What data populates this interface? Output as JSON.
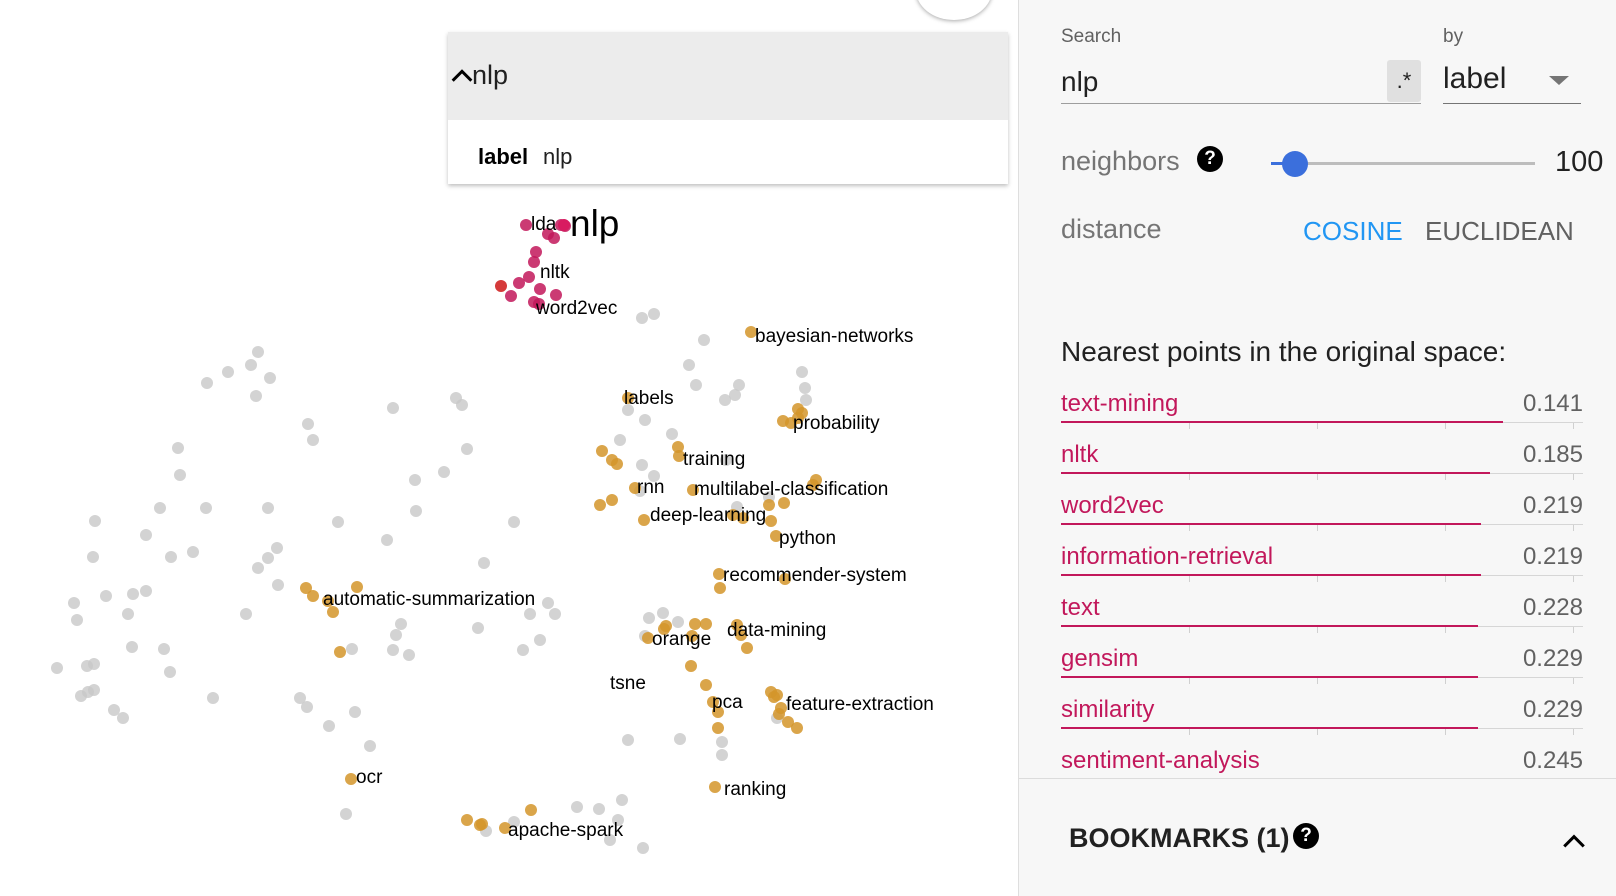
{
  "search_card": {
    "query": "nlp",
    "result_key": "label",
    "result_value": "nlp"
  },
  "panel": {
    "search_label": "Search",
    "search_value": "nlp",
    "regex_label": ".*",
    "by_label": "by",
    "by_value": "label",
    "neighbors_label": "neighbors",
    "neighbors_value": "100",
    "neighbors_fraction": 0.09,
    "help_glyph": "?",
    "distance_label": "distance",
    "distance_options": [
      "COSINE",
      "EUCLIDEAN"
    ],
    "distance_selected": "COSINE",
    "nearest_title": "Nearest points in the original space:",
    "nearest": [
      {
        "name": "text-mining",
        "dist": "0.141"
      },
      {
        "name": "nltk",
        "dist": "0.185"
      },
      {
        "name": "word2vec",
        "dist": "0.219"
      },
      {
        "name": "information-retrieval",
        "dist": "0.219"
      },
      {
        "name": "text",
        "dist": "0.228"
      },
      {
        "name": "gensim",
        "dist": "0.229"
      },
      {
        "name": "similarity",
        "dist": "0.229"
      },
      {
        "name": "sentiment-analysis",
        "dist": "0.245"
      }
    ],
    "bookmarks_label": "BOOKMARKS (1)"
  },
  "colors": {
    "accent_blue": "#2196f3",
    "slider_blue": "#3b6fdc",
    "neighbor_pink": "#c2185b",
    "selected_red": "#d81b60",
    "neighbor_orange": "#d4952a",
    "far_gray": "#c8c8c8"
  },
  "plot": {
    "labels": [
      {
        "text": "nlp",
        "big": true
      },
      {
        "text": "lda"
      },
      {
        "text": "nltk"
      },
      {
        "text": "word2vec"
      },
      {
        "text": "bayesian-networks"
      },
      {
        "text": "labels"
      },
      {
        "text": "probability"
      },
      {
        "text": "training"
      },
      {
        "text": "rnn"
      },
      {
        "text": "multilabel-classification"
      },
      {
        "text": "deep-learning"
      },
      {
        "text": "python"
      },
      {
        "text": "recommender-system"
      },
      {
        "text": "automatic-summarization"
      },
      {
        "text": "data-mining"
      },
      {
        "text": "orange"
      },
      {
        "text": "tsne"
      },
      {
        "text": "pca"
      },
      {
        "text": "feature-extraction"
      },
      {
        "text": "ocr"
      },
      {
        "text": "ranking"
      },
      {
        "text": "apache-spark"
      }
    ]
  }
}
